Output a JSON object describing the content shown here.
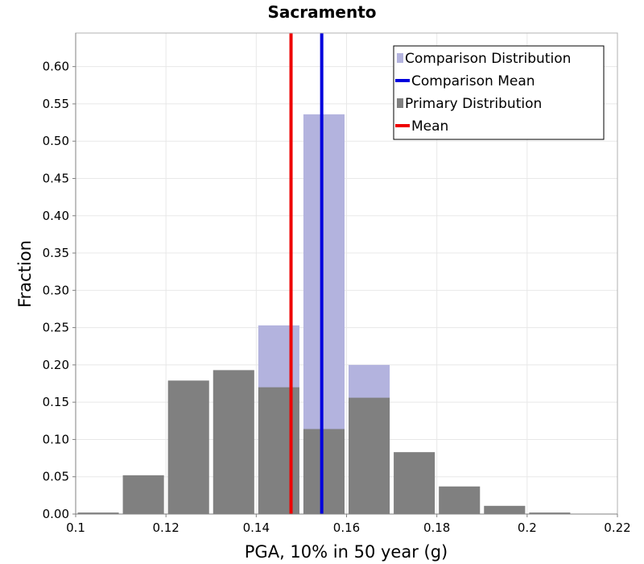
{
  "chart_data": {
    "type": "bar",
    "title": "Sacramento",
    "xlabel": "PGA, 10% in 50 year (g)",
    "ylabel": "Fraction",
    "xlim": [
      0.1,
      0.22
    ],
    "ylim": [
      0,
      0.645
    ],
    "xticks": [
      "0.1",
      "0.12",
      "0.14",
      "0.16",
      "0.18",
      "0.2",
      "0.22"
    ],
    "yticks": [
      "0.00",
      "0.05",
      "0.10",
      "0.15",
      "0.20",
      "0.25",
      "0.30",
      "0.35",
      "0.40",
      "0.45",
      "0.50",
      "0.55",
      "0.60"
    ],
    "grid": true,
    "legend_position": "top-right",
    "bin_width": 0.01,
    "series": [
      {
        "name": "Comparison Distribution",
        "kind": "histogram",
        "color": "#b3b3de",
        "bins": [
          {
            "x": 0.145,
            "value": 0.253
          },
          {
            "x": 0.155,
            "value": 0.536
          },
          {
            "x": 0.165,
            "value": 0.2
          }
        ]
      },
      {
        "name": "Comparison Mean",
        "kind": "vline",
        "color": "#0000dd",
        "x": 0.1545
      },
      {
        "name": "Primary Distribution",
        "kind": "histogram",
        "color": "#808080",
        "bins": [
          {
            "x": 0.105,
            "value": 0.002
          },
          {
            "x": 0.115,
            "value": 0.052
          },
          {
            "x": 0.125,
            "value": 0.179
          },
          {
            "x": 0.135,
            "value": 0.193
          },
          {
            "x": 0.145,
            "value": 0.17
          },
          {
            "x": 0.155,
            "value": 0.114
          },
          {
            "x": 0.165,
            "value": 0.156
          },
          {
            "x": 0.175,
            "value": 0.083
          },
          {
            "x": 0.185,
            "value": 0.037
          },
          {
            "x": 0.195,
            "value": 0.011
          },
          {
            "x": 0.205,
            "value": 0.002
          }
        ]
      },
      {
        "name": "Mean",
        "kind": "vline",
        "color": "#ee0000",
        "x": 0.1477
      }
    ]
  }
}
